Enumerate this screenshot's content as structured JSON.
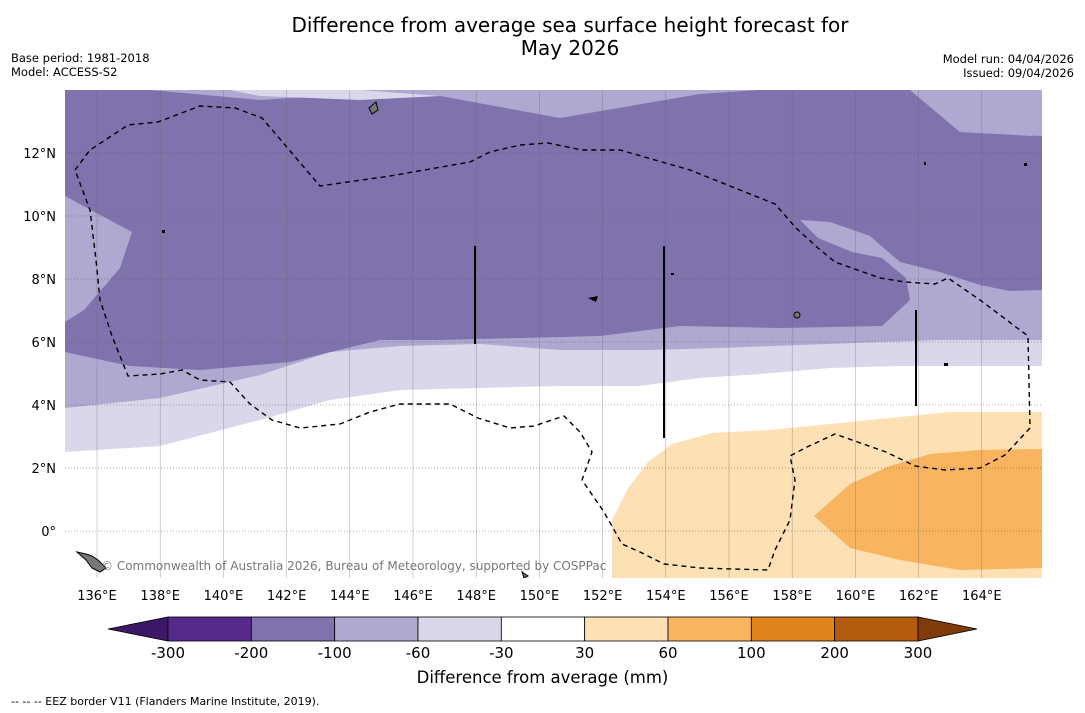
{
  "title": {
    "line1": "Difference from average sea surface height forecast for",
    "line2": "May 2026"
  },
  "meta_left": {
    "base_period": "Base period: 1981-2018",
    "model": "Model: ACCESS-S2"
  },
  "meta_right": {
    "model_run": "Model run: 04/04/2026",
    "issued": "Issued: 09/04/2026"
  },
  "map": {
    "lon_labels": [
      "136°E",
      "138°E",
      "140°E",
      "142°E",
      "144°E",
      "146°E",
      "148°E",
      "150°E",
      "152°E",
      "154°E",
      "156°E",
      "158°E",
      "160°E",
      "162°E",
      "164°E"
    ],
    "lat_labels": [
      "12°N",
      "10°N",
      "8°N",
      "6°N",
      "4°N",
      "2°N",
      "0°"
    ],
    "credit": "© Commonwealth of Australia 2026, Bureau of Meteorology, supported by COSPPac",
    "colors": {
      "band_n200": "#7f72ad",
      "band_n100": "#afa8d0",
      "band_n60": "#d9d8ea",
      "band_n30": "#ffffff",
      "band_p30": "#fde0b4",
      "band_p60": "#f9b45f",
      "land": "#777777",
      "eez": "#000000"
    }
  },
  "colorbar": {
    "tick_labels": [
      "-300",
      "-200",
      "-100",
      "-60",
      "-30",
      "30",
      "60",
      "100",
      "200",
      "300"
    ],
    "colors": [
      "#3e1868",
      "#562a8a",
      "#7f72ad",
      "#afa8d0",
      "#d9d8ea",
      "#ffffff",
      "#fde0b4",
      "#f9b45f",
      "#e0841b",
      "#b35c0e",
      "#7f3b08"
    ],
    "label": "Difference from average (mm)"
  },
  "footer": {
    "legend_text": "--  --  -- EEZ border V11 (Flanders Marine Institute, 2019)."
  }
}
